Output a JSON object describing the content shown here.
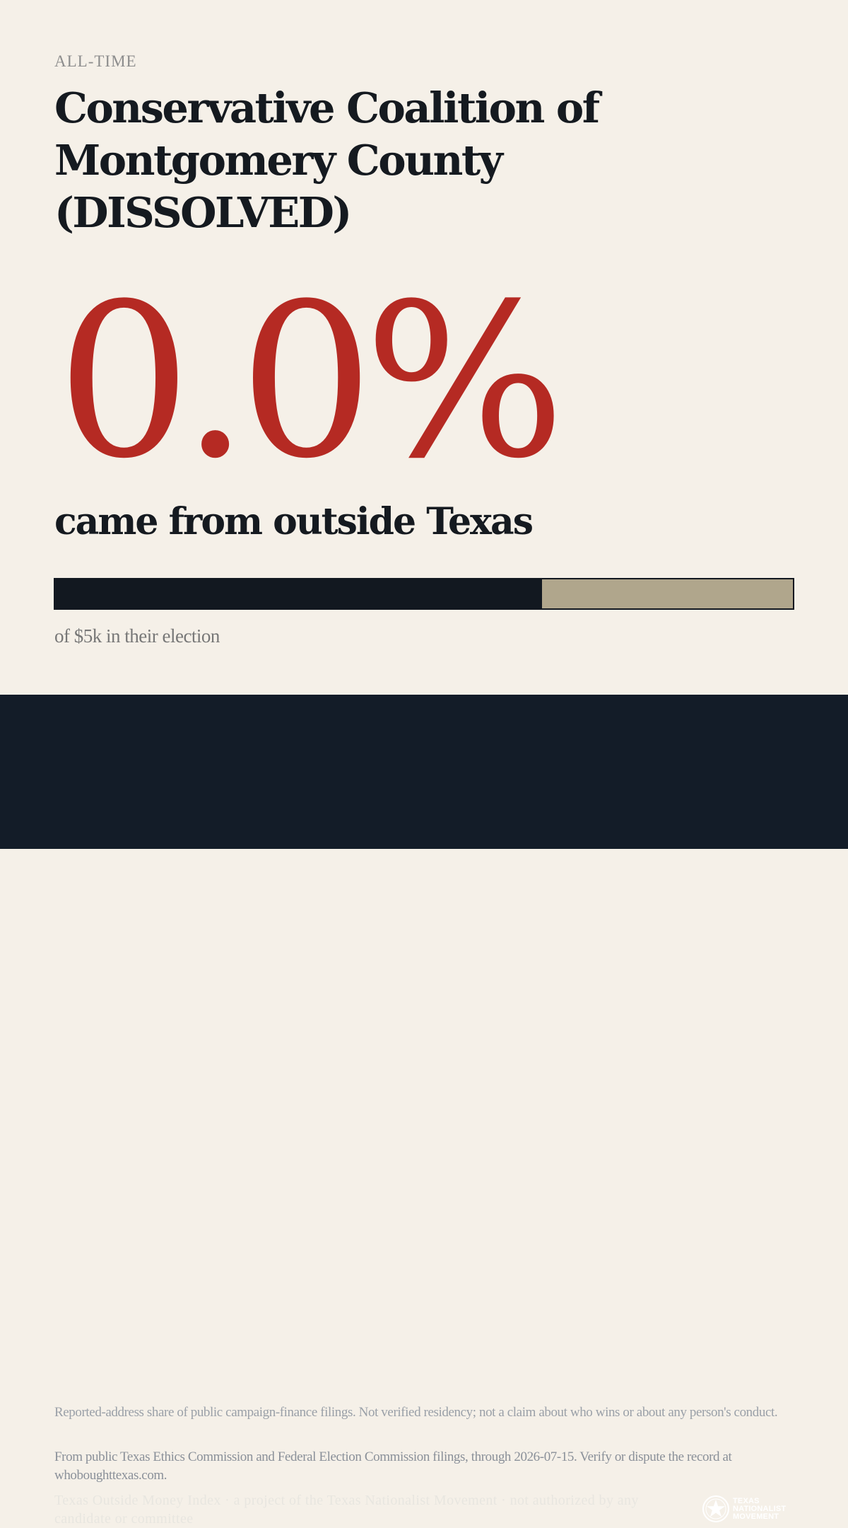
{
  "header": {
    "eyebrow": "ALL-TIME",
    "title": "Conservative Coalition of Montgomery County (DISSOLVED)"
  },
  "stat": {
    "value": "0.0%",
    "label": "came from outside Texas"
  },
  "bar": {
    "fill_fraction": 0.66,
    "caption": "of $5k in their election"
  },
  "colors": {
    "background": "#f5f0e8",
    "accent_red": "#b52a23",
    "bar_fill": "#121820",
    "bar_track": "#b0a68c",
    "footer_bg": "#131c28"
  },
  "footer": {
    "disclaimer": "Reported-address share of public campaign-finance filings. Not verified residency; not a claim about who wins or about any person's conduct.",
    "source": "From public Texas Ethics Commission and Federal Election Commission filings, through 2026-07-15. Verify or dispute the record at whoboughttexas.com.",
    "credit": "Texas Outside Money Index · a project of the Texas Nationalist Movement · not authorized by any candidate or committee",
    "logo": {
      "icon": "star-circle-icon",
      "line1": "TEXAS",
      "line2": "NATIONALIST",
      "line3": "MOVEMENT"
    }
  }
}
